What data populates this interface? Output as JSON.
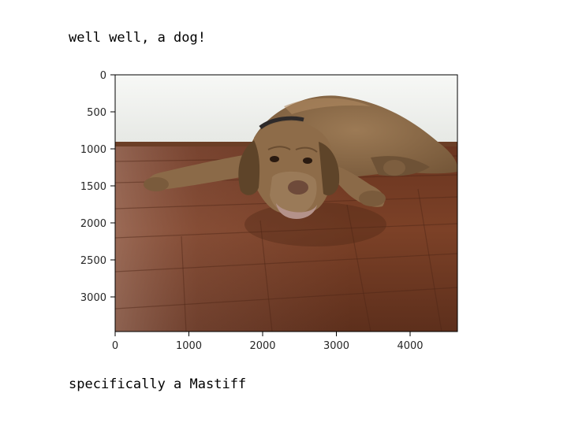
{
  "output": {
    "line_top": "well well, a dog!",
    "line_bottom": "specifically a Mastiff"
  },
  "image": {
    "subject": "dog",
    "palette": {
      "wall": "#eef0ee",
      "baseboard": "#6b3e26",
      "floor_dark": "#5a2e1a",
      "floor_mid": "#7a3f24",
      "floor_light": "#9b6a55",
      "dog_fur": "#8b6a48",
      "dog_fur_dark": "#6e5236",
      "dog_fur_light": "#b08a62"
    }
  },
  "chart_data": {
    "type": "image",
    "x_ticks": [
      0,
      1000,
      2000,
      3000,
      4000
    ],
    "y_ticks": [
      0,
      500,
      1000,
      1500,
      2000,
      2500,
      3000
    ],
    "xlim": [
      0,
      4640
    ],
    "ylim": [
      3480,
      0
    ]
  }
}
